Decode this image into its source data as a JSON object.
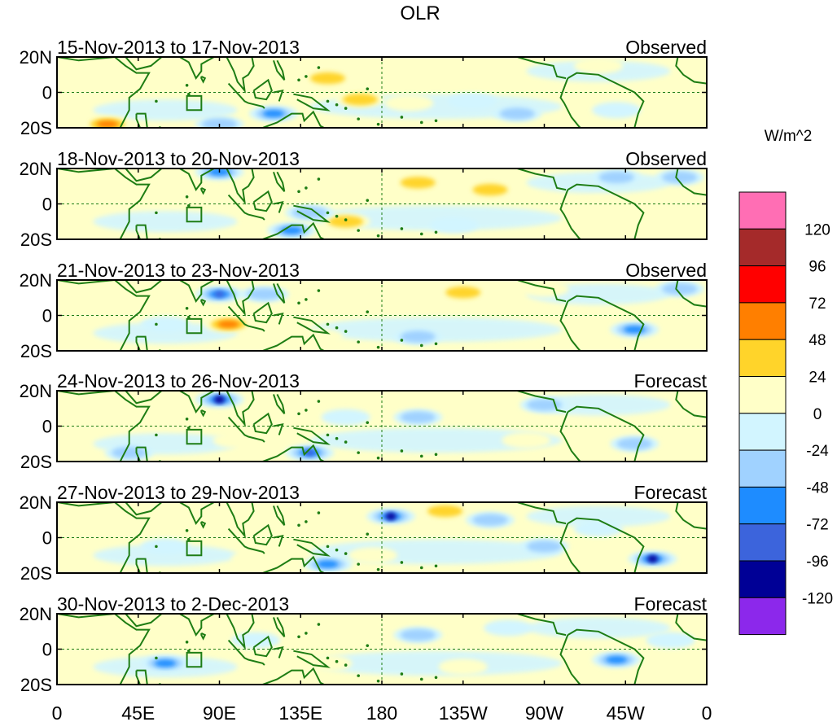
{
  "chart_data": {
    "type": "heatmap",
    "title": "OLR",
    "units": "W/m^2",
    "x_tick_labels": [
      "0",
      "45E",
      "90E",
      "135E",
      "180",
      "135W",
      "90W",
      "45W",
      "0"
    ],
    "y_tick_labels": [
      "20N",
      "0",
      "20S"
    ],
    "x_range_deg_east": [
      0,
      360
    ],
    "y_range_deg_lat": [
      -20,
      20
    ],
    "panels": [
      {
        "period": "15-Nov-2013 to 17-Nov-2013",
        "kind": "Observed",
        "anomalies": [
          {
            "lon": 150,
            "lat": 8,
            "value": 48
          },
          {
            "lon": 168,
            "lat": -4,
            "value": 48
          },
          {
            "lon": 28,
            "lat": -18,
            "value": 72
          },
          {
            "lon": 100,
            "lat": 5,
            "value": 24
          },
          {
            "lon": 195,
            "lat": -6,
            "value": 24
          },
          {
            "lon": 300,
            "lat": 15,
            "value": 24
          },
          {
            "lon": 120,
            "lat": -12,
            "value": -72
          },
          {
            "lon": 90,
            "lat": -18,
            "value": -48
          },
          {
            "lon": 255,
            "lat": -12,
            "value": -48
          },
          {
            "lon": 230,
            "lat": -5,
            "value": -24
          },
          {
            "lon": 310,
            "lat": -10,
            "value": -24
          }
        ]
      },
      {
        "period": "18-Nov-2013 to 20-Nov-2013",
        "kind": "Observed",
        "anomalies": [
          {
            "lon": 200,
            "lat": 12,
            "value": 48
          },
          {
            "lon": 240,
            "lat": 8,
            "value": 48
          },
          {
            "lon": 160,
            "lat": -10,
            "value": 48
          },
          {
            "lon": 115,
            "lat": -8,
            "value": 24
          },
          {
            "lon": 80,
            "lat": 5,
            "value": 24
          },
          {
            "lon": 300,
            "lat": 0,
            "value": 24
          },
          {
            "lon": 90,
            "lat": 18,
            "value": -72
          },
          {
            "lon": 130,
            "lat": -15,
            "value": -72
          },
          {
            "lon": 140,
            "lat": -5,
            "value": -48
          },
          {
            "lon": 310,
            "lat": 15,
            "value": -48
          },
          {
            "lon": 345,
            "lat": 15,
            "value": -48
          },
          {
            "lon": 220,
            "lat": -12,
            "value": -24
          }
        ]
      },
      {
        "period": "21-Nov-2013 to 23-Nov-2013",
        "kind": "Observed",
        "anomalies": [
          {
            "lon": 95,
            "lat": -5,
            "value": 72
          },
          {
            "lon": 180,
            "lat": 15,
            "value": 24
          },
          {
            "lon": 225,
            "lat": 13,
            "value": 48
          },
          {
            "lon": 145,
            "lat": -12,
            "value": 24
          },
          {
            "lon": 270,
            "lat": 15,
            "value": 24
          },
          {
            "lon": 90,
            "lat": 12,
            "value": -96
          },
          {
            "lon": 115,
            "lat": 12,
            "value": -48
          },
          {
            "lon": 60,
            "lat": -5,
            "value": -24
          },
          {
            "lon": 320,
            "lat": -8,
            "value": -72
          },
          {
            "lon": 200,
            "lat": -12,
            "value": -48
          },
          {
            "lon": 345,
            "lat": 15,
            "value": -48
          }
        ]
      },
      {
        "period": "24-Nov-2013 to 26-Nov-2013",
        "kind": "Forecast",
        "anomalies": [
          {
            "lon": 195,
            "lat": 15,
            "value": 24
          },
          {
            "lon": 100,
            "lat": -8,
            "value": 24
          },
          {
            "lon": 260,
            "lat": -8,
            "value": 24
          },
          {
            "lon": 65,
            "lat": 12,
            "value": 24
          },
          {
            "lon": 90,
            "lat": 15,
            "value": -120
          },
          {
            "lon": 140,
            "lat": -15,
            "value": -96
          },
          {
            "lon": 200,
            "lat": 5,
            "value": -48
          },
          {
            "lon": 270,
            "lat": 12,
            "value": -48
          },
          {
            "lon": 40,
            "lat": -15,
            "value": -48
          },
          {
            "lon": 320,
            "lat": -10,
            "value": -48
          },
          {
            "lon": 160,
            "lat": 5,
            "value": -24
          }
        ]
      },
      {
        "period": "27-Nov-2013 to 29-Nov-2013",
        "kind": "Forecast",
        "anomalies": [
          {
            "lon": 215,
            "lat": 15,
            "value": 48
          },
          {
            "lon": 110,
            "lat": -12,
            "value": 24
          },
          {
            "lon": 175,
            "lat": -10,
            "value": 24
          },
          {
            "lon": 85,
            "lat": 10,
            "value": 24
          },
          {
            "lon": 185,
            "lat": 12,
            "value": -120
          },
          {
            "lon": 330,
            "lat": -12,
            "value": -120
          },
          {
            "lon": 150,
            "lat": -15,
            "value": -72
          },
          {
            "lon": 240,
            "lat": 10,
            "value": -48
          },
          {
            "lon": 300,
            "lat": 5,
            "value": -24
          },
          {
            "lon": 60,
            "lat": -5,
            "value": -24
          },
          {
            "lon": 270,
            "lat": -5,
            "value": -48
          }
        ]
      },
      {
        "period": "30-Nov-2013 to 2-Dec-2013",
        "kind": "Forecast",
        "anomalies": [
          {
            "lon": 130,
            "lat": 2,
            "value": 24
          },
          {
            "lon": 150,
            "lat": -8,
            "value": 24
          },
          {
            "lon": 225,
            "lat": -10,
            "value": 24
          },
          {
            "lon": 60,
            "lat": -8,
            "value": -72
          },
          {
            "lon": 310,
            "lat": -6,
            "value": -72
          },
          {
            "lon": 200,
            "lat": 8,
            "value": -48
          },
          {
            "lon": 250,
            "lat": 12,
            "value": -24
          },
          {
            "lon": 110,
            "lat": 5,
            "value": -24
          },
          {
            "lon": 340,
            "lat": 5,
            "value": -24
          }
        ]
      }
    ],
    "colorbar": {
      "labels": [
        "120",
        "96",
        "72",
        "48",
        "24",
        "0",
        "-24",
        "-48",
        "-72",
        "-96",
        "-120"
      ],
      "levels": [
        120,
        96,
        72,
        48,
        24,
        0,
        -24,
        -48,
        -72,
        -96,
        -120
      ],
      "colors": [
        "#ff6eb4",
        "#a52a2a",
        "#ff0000",
        "#ff7f00",
        "#ffd42a",
        "#ffffc8",
        "#d2f5ff",
        "#a0d2ff",
        "#1e8cff",
        "#3c64dc",
        "#000096",
        "#8c28eb"
      ]
    }
  },
  "colors": {
    "coast": "#1e7d14",
    "frame": "#000000",
    "guide": "#1e7d14"
  }
}
